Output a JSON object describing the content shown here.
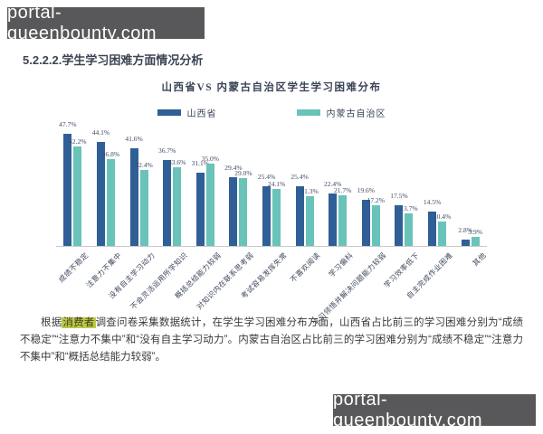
{
  "watermarks": {
    "top": "portal-queenbounty.com",
    "bottom": "portal-queenbounty.com"
  },
  "section_heading": "5.2.2.2.学生学习困难方面情况分析",
  "chart_data": {
    "type": "bar",
    "title": "山西省VS 内蒙古自治区学生学习困难分布",
    "categories": [
      "成绩不稳定",
      "注意力不集中",
      "没有自主学习动力",
      "不会灵活运用所学知识",
      "概括总结能力较弱",
      "对知识内在联系思考弱",
      "考试容易发挥失常",
      "不喜欢阅读",
      "学习偏科",
      "学习领悟并解决问题能力较弱",
      "学习效率低下",
      "自主完成作业困难",
      "其他"
    ],
    "series": [
      {
        "name": "山西省",
        "color": "#2f5f96",
        "values": [
          47.7,
          44.1,
          41.6,
          36.7,
          31.1,
          29.4,
          25.4,
          25.4,
          22.4,
          19.6,
          17.5,
          14.5,
          2.8
        ]
      },
      {
        "name": "内蒙古自治区",
        "color": "#69c3b8",
        "values": [
          42.2,
          36.8,
          32.4,
          33.6,
          35.0,
          29.0,
          24.1,
          21.3,
          21.7,
          17.2,
          13.7,
          10.4,
          3.9
        ]
      }
    ],
    "value_suffix": "%",
    "ylim": [
      0,
      50
    ],
    "grid": false,
    "legend_position": "top",
    "xlabel": "",
    "ylabel": ""
  },
  "paragraph": {
    "prefix": "根据",
    "highlight": "消费者",
    "body": "调查问卷采集数据统计，在学生学习困难分布方面，山西省占比前三的学习困难分别为“成绩不稳定”“注意力不集中”和“没有自主学习动力”。内蒙古自治区占比前三的学习困难分别为“成绩不稳定”“注意力不集中”和“概括总结能力较弱”。",
    "highlight_color": "#bdca45"
  },
  "colors": {
    "series1": "#2f5f96",
    "series2": "#69c3b8",
    "axis": "#c9c9c9",
    "watermark_bg": "#58585a",
    "value_label": "#3d4a63"
  }
}
